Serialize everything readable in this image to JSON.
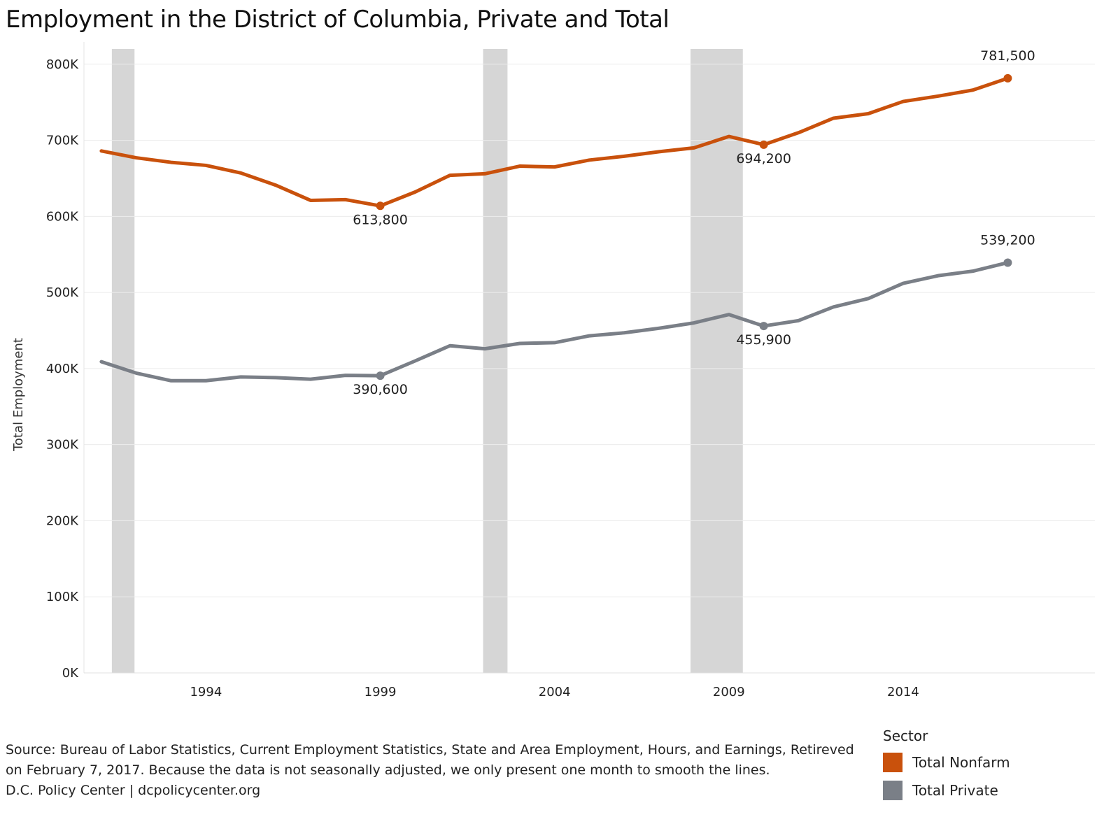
{
  "chart_data": {
    "type": "line",
    "title": "Employment in the District of Columbia, Private and Total",
    "ylabel": "Total Employment",
    "xlabel": "",
    "ylim": [
      0,
      820000
    ],
    "xlim": [
      1990.5,
      2019.5
    ],
    "y_ticks": [
      {
        "value": 0,
        "label": "0K"
      },
      {
        "value": 100000,
        "label": "100K"
      },
      {
        "value": 200000,
        "label": "200K"
      },
      {
        "value": 300000,
        "label": "300K"
      },
      {
        "value": 400000,
        "label": "400K"
      },
      {
        "value": 500000,
        "label": "500K"
      },
      {
        "value": 600000,
        "label": "600K"
      },
      {
        "value": 700000,
        "label": "700K"
      },
      {
        "value": 800000,
        "label": "800K"
      }
    ],
    "x_ticks": [
      {
        "value": 1994,
        "label": "1994"
      },
      {
        "value": 1999,
        "label": "1999"
      },
      {
        "value": 2004,
        "label": "2004"
      },
      {
        "value": 2009,
        "label": "2009"
      },
      {
        "value": 2014,
        "label": "2014"
      }
    ],
    "grid": true,
    "recession_bands": [
      {
        "start": 1991.3,
        "end": 1991.95
      },
      {
        "start": 2001.95,
        "end": 2002.65
      },
      {
        "start": 2007.9,
        "end": 2009.4
      }
    ],
    "x": [
      1991,
      1992,
      1993,
      1994,
      1995,
      1996,
      1997,
      1998,
      1999,
      2000,
      2001,
      2002,
      2003,
      2004,
      2005,
      2006,
      2007,
      2008,
      2009,
      2010,
      2011,
      2012,
      2013,
      2014,
      2015,
      2016,
      2017
    ],
    "series": [
      {
        "name": "Total Nonfarm",
        "color": "#c9510c",
        "values": [
          686000,
          677000,
          671000,
          667000,
          657000,
          641000,
          621000,
          622000,
          613800,
          632000,
          654000,
          656000,
          666000,
          665000,
          674000,
          679000,
          685000,
          690000,
          705000,
          694200,
          710000,
          729000,
          735000,
          751000,
          758000,
          766000,
          781500
        ]
      },
      {
        "name": "Total Private",
        "color": "#7a7f87",
        "values": [
          409000,
          394000,
          384000,
          384000,
          389000,
          388000,
          386000,
          391000,
          390600,
          410000,
          430000,
          426000,
          433000,
          434000,
          443000,
          447000,
          453000,
          460000,
          471000,
          455900,
          463000,
          481000,
          492000,
          512000,
          522000,
          528000,
          539200
        ]
      }
    ],
    "annotations": [
      {
        "series": 0,
        "index": 8,
        "label": "613,800",
        "position": "below"
      },
      {
        "series": 0,
        "index": 19,
        "label": "694,200",
        "position": "below"
      },
      {
        "series": 0,
        "index": 26,
        "label": "781,500",
        "position": "above"
      },
      {
        "series": 1,
        "index": 8,
        "label": "390,600",
        "position": "below"
      },
      {
        "series": 1,
        "index": 19,
        "label": "455,900",
        "position": "below"
      },
      {
        "series": 1,
        "index": 26,
        "label": "539,200",
        "position": "above"
      }
    ],
    "legend": {
      "title": "Sector",
      "placement": "bottom-right",
      "items": [
        {
          "label": "Total Nonfarm",
          "color": "#c9510c"
        },
        {
          "label": "Total Private",
          "color": "#7a7f87"
        }
      ]
    }
  },
  "source_note": {
    "line1": "Source: Bureau of Labor Statistics, Current Employment Statistics, State and Area Employment, Hours, and Earnings, Retireved",
    "line2": "on February 7, 2017. Because the data is not seasonally adjusted, we only present one month to smooth the lines.",
    "line3": "D.C. Policy Center | dcpolicycenter.org"
  }
}
